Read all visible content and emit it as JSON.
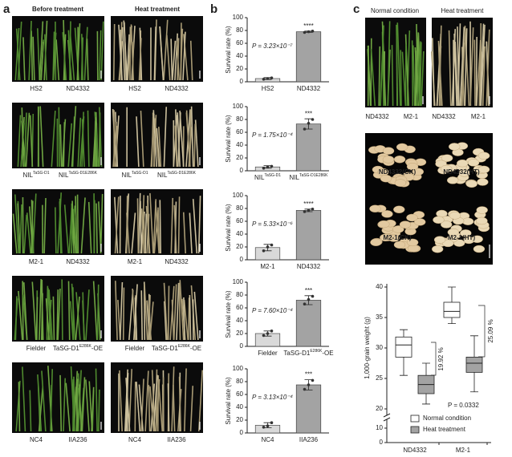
{
  "panel_labels": [
    "a",
    "b",
    "c"
  ],
  "panel_a": {
    "headers": [
      "Before treatment",
      "Heat treatment"
    ],
    "rows": [
      [
        {
          "text": "HS2"
        },
        {
          "text": "ND4332"
        }
      ],
      [
        {
          "text": "NIL",
          "sup": "TaSG-D1"
        },
        {
          "text": "NIL",
          "sup": "TaSG-D1E286K"
        }
      ],
      [
        {
          "text": "M2-1"
        },
        {
          "text": "ND4332"
        }
      ],
      [
        {
          "text": "Fielder"
        },
        {
          "text": "TaSG-D1",
          "sup": "E286K",
          "suffix": "-OE"
        }
      ],
      [
        {
          "text": "NC4"
        },
        {
          "text": "IIA236"
        }
      ]
    ]
  },
  "panel_c": {
    "headers": [
      "Normal condition",
      "Heat treatment"
    ],
    "captions": [
      "ND4332",
      "M2-1",
      "ND4332",
      "M2-1"
    ],
    "grain_labels": [
      "ND4332(CK)",
      "ND4332(HT)",
      "M2-1(CK)",
      "M2-1(HT)"
    ]
  },
  "chart_data": [
    {
      "type": "bar",
      "ylabel": "Survival rate (%)",
      "categories": [
        "HS2",
        "ND4332"
      ],
      "category_superscripts": [
        null,
        null
      ],
      "category_suffixes": [
        null,
        null
      ],
      "values": [
        5,
        78
      ],
      "errors": [
        1.5,
        1
      ],
      "points": [
        [
          4,
          5,
          6
        ],
        [
          77,
          78,
          79
        ]
      ],
      "colors": [
        "#d9d9d9",
        "#a3a3a3"
      ],
      "ylim": [
        0,
        100
      ],
      "yticks": [
        0,
        20,
        40,
        60,
        80,
        100
      ],
      "annotation": "P = 3.23×10⁻⁷",
      "significance": "****"
    },
    {
      "type": "bar",
      "ylabel": "Survival rate (%)",
      "categories": [
        "NIL",
        "NIL"
      ],
      "category_superscripts": [
        "TaSG-D1",
        "TaSG-D1E286K"
      ],
      "category_suffixes": [
        null,
        null
      ],
      "values": [
        6,
        73
      ],
      "errors": [
        2,
        8
      ],
      "points": [
        [
          4,
          6,
          7
        ],
        [
          65,
          74,
          80
        ]
      ],
      "colors": [
        "#d9d9d9",
        "#a3a3a3"
      ],
      "ylim": [
        0,
        100
      ],
      "yticks": [
        0,
        20,
        40,
        60,
        80,
        100
      ],
      "annotation": "P = 1.75×10⁻⁴",
      "significance": "***"
    },
    {
      "type": "bar",
      "ylabel": "Survival rate (%)",
      "categories": [
        "M2-1",
        "ND4332"
      ],
      "category_superscripts": [
        null,
        null
      ],
      "category_suffixes": [
        null,
        null
      ],
      "values": [
        19,
        77
      ],
      "errors": [
        5,
        2
      ],
      "points": [
        [
          14,
          20,
          23
        ],
        [
          75,
          77,
          79
        ]
      ],
      "colors": [
        "#d9d9d9",
        "#a3a3a3"
      ],
      "ylim": [
        0,
        100
      ],
      "yticks": [
        0,
        20,
        40,
        60,
        80,
        100
      ],
      "annotation": "P = 5.33×10⁻⁶",
      "significance": "****"
    },
    {
      "type": "bar",
      "ylabel": "Survival rate (%)",
      "categories": [
        "Fielder",
        "TaSG-D1"
      ],
      "category_superscripts": [
        null,
        "E286K"
      ],
      "category_suffixes": [
        null,
        "-OE"
      ],
      "values": [
        20,
        72
      ],
      "errors": [
        4,
        7
      ],
      "points": [
        [
          17,
          20,
          24
        ],
        [
          66,
          73,
          78
        ]
      ],
      "colors": [
        "#d9d9d9",
        "#a3a3a3"
      ],
      "ylim": [
        0,
        100
      ],
      "yticks": [
        0,
        20,
        40,
        60,
        80,
        100
      ],
      "annotation": "P = 7.60×10⁻⁴",
      "significance": "***"
    },
    {
      "type": "bar",
      "ylabel": "Survival rate (%)",
      "categories": [
        "NC4",
        "IIA236"
      ],
      "category_superscripts": [
        null,
        null
      ],
      "category_suffixes": [
        null,
        null
      ],
      "values": [
        12,
        75
      ],
      "errors": [
        4,
        8
      ],
      "points": [
        [
          9,
          11,
          16
        ],
        [
          68,
          75,
          82
        ]
      ],
      "colors": [
        "#d9d9d9",
        "#a3a3a3"
      ],
      "ylim": [
        0,
        100
      ],
      "yticks": [
        0,
        20,
        40,
        60,
        80,
        100
      ],
      "annotation": "P = 3.13×10⁻⁴",
      "significance": "***"
    },
    {
      "type": "box",
      "ylabel": "1,000-grain weight (g)",
      "categories": [
        "ND4332",
        "M2-1"
      ],
      "series": [
        {
          "name": "Normal condition",
          "color": "#ffffff",
          "boxes": [
            {
              "min": 25.5,
              "q1": 28.5,
              "median": 30.5,
              "q3": 31.8,
              "max": 33
            },
            {
              "min": 34,
              "q1": 35,
              "median": 36,
              "q3": 37.5,
              "max": 40
            }
          ]
        },
        {
          "name": "Heat treatment",
          "color": "#a3a3a3",
          "boxes": [
            {
              "min": 20.8,
              "q1": 22.5,
              "median": 24,
              "q3": 25.5,
              "max": 27.5
            },
            {
              "min": 22.8,
              "q1": 26,
              "median": 27.5,
              "q3": 28.5,
              "max": 32
            }
          ]
        }
      ],
      "ylim": [
        20,
        40
      ],
      "yticks": [
        20,
        25,
        30,
        35,
        40
      ],
      "lower_ylim": [
        0,
        10
      ],
      "lower_yticks": [
        0,
        10
      ],
      "annotations": [
        "19.92 %",
        "25.09 %",
        "P = 0.0332"
      ]
    }
  ]
}
